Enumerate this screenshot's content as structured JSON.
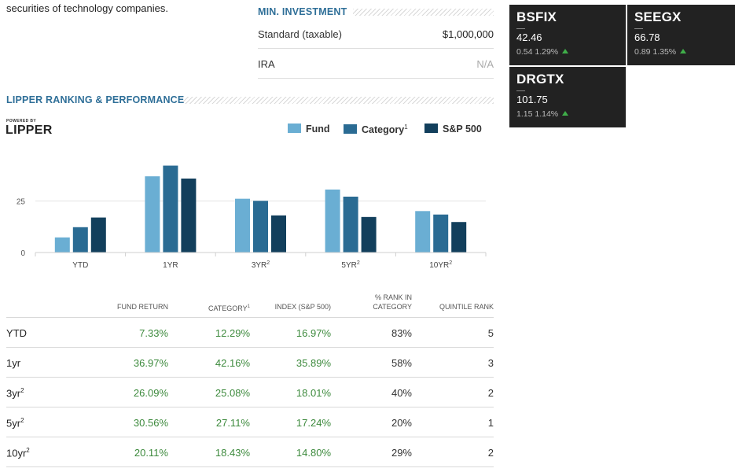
{
  "intro": {
    "text": "securities of technology companies."
  },
  "min_investment": {
    "heading": "MIN. INVESTMENT",
    "rows": [
      {
        "label": "Standard (taxable)",
        "value": "$1,000,000"
      },
      {
        "label": "IRA",
        "value": "N/A"
      }
    ]
  },
  "lipper": {
    "heading": "LIPPER RANKING & PERFORMANCE",
    "powered_by": "POWERED BY",
    "logo_text": "LIPPER"
  },
  "legend": {
    "fund": "Fund",
    "category": "Category",
    "category_sup": "1",
    "sp500": "S&P 500"
  },
  "colors": {
    "fund": "#6aaed3",
    "category": "#2a6b93",
    "sp500": "#123f5c",
    "positive": "#3d8a3d",
    "ticker_bg": "#222222",
    "heading": "#2f6f98"
  },
  "chart_data": {
    "type": "bar",
    "categories": [
      "YTD",
      "1YR",
      "3YR",
      "5YR",
      "10YR"
    ],
    "category_sups": [
      "",
      "",
      "2",
      "2",
      "2"
    ],
    "series": [
      {
        "name": "Fund",
        "values": [
          7.33,
          36.97,
          26.09,
          30.56,
          20.11
        ]
      },
      {
        "name": "Category",
        "values": [
          12.29,
          42.16,
          25.08,
          27.11,
          18.43
        ]
      },
      {
        "name": "S&P 500",
        "values": [
          16.97,
          35.89,
          18.01,
          17.24,
          14.8
        ]
      }
    ],
    "yticks": [
      "0",
      "25"
    ],
    "ylim": [
      0,
      45
    ],
    "grid": true,
    "legend_position": "top-right"
  },
  "table": {
    "headers": {
      "fund_return": "FUND RETURN",
      "category": "CATEGORY",
      "category_sup": "1",
      "index": "INDEX (S&P 500)",
      "rank_line1": "% RANK IN",
      "rank_line2": "CATEGORY",
      "quintile": "QUINTILE RANK"
    },
    "rows": [
      {
        "period": "YTD",
        "sup": "",
        "fund": "7.33%",
        "category": "12.29%",
        "index": "16.97%",
        "rank": "83%",
        "quintile": "5"
      },
      {
        "period": "1yr",
        "sup": "",
        "fund": "36.97%",
        "category": "42.16%",
        "index": "35.89%",
        "rank": "58%",
        "quintile": "3"
      },
      {
        "period": "3yr",
        "sup": "2",
        "fund": "26.09%",
        "category": "25.08%",
        "index": "18.01%",
        "rank": "40%",
        "quintile": "2"
      },
      {
        "period": "5yr",
        "sup": "2",
        "fund": "30.56%",
        "category": "27.11%",
        "index": "17.24%",
        "rank": "20%",
        "quintile": "1"
      },
      {
        "period": "10yr",
        "sup": "2",
        "fund": "20.11%",
        "category": "18.43%",
        "index": "14.80%",
        "rank": "29%",
        "quintile": "2"
      }
    ]
  },
  "tickers": [
    {
      "symbol": "BSFIX",
      "price": "42.46",
      "change": "0.54 1.29%",
      "direction": "up"
    },
    {
      "symbol": "SEEGX",
      "price": "66.78",
      "change": "0.89 1.35%",
      "direction": "up"
    },
    {
      "symbol": "DRGTX",
      "price": "101.75",
      "change": "1.15 1.14%",
      "direction": "up"
    }
  ]
}
